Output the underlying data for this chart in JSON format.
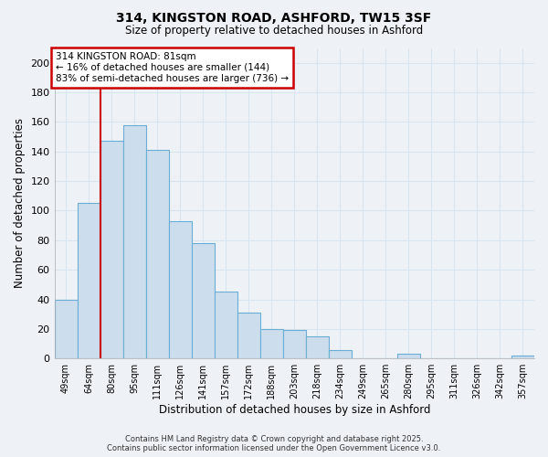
{
  "title": "314, KINGSTON ROAD, ASHFORD, TW15 3SF",
  "subtitle": "Size of property relative to detached houses in Ashford",
  "xlabel": "Distribution of detached houses by size in Ashford",
  "ylabel": "Number of detached properties",
  "bar_labels": [
    "49sqm",
    "64sqm",
    "80sqm",
    "95sqm",
    "111sqm",
    "126sqm",
    "141sqm",
    "157sqm",
    "172sqm",
    "188sqm",
    "203sqm",
    "218sqm",
    "234sqm",
    "249sqm",
    "265sqm",
    "280sqm",
    "295sqm",
    "311sqm",
    "326sqm",
    "342sqm",
    "357sqm"
  ],
  "bar_heights": [
    40,
    105,
    147,
    158,
    141,
    93,
    78,
    45,
    31,
    20,
    19,
    15,
    6,
    0,
    0,
    3,
    0,
    0,
    0,
    0,
    2
  ],
  "bar_color": "#ccdded",
  "bar_edge_color": "#6aaed6",
  "vline_color": "#cc0000",
  "annotation_line1": "314 KINGSTON ROAD: 81sqm",
  "annotation_line2": "← 16% of detached houses are smaller (144)",
  "annotation_line3": "83% of semi-detached houses are larger (736) →",
  "annotation_box_color": "#cc0000",
  "ylim": [
    0,
    210
  ],
  "yticks": [
    0,
    20,
    40,
    60,
    80,
    100,
    120,
    140,
    160,
    180,
    200
  ],
  "footer_line1": "Contains HM Land Registry data © Crown copyright and database right 2025.",
  "footer_line2": "Contains public sector information licensed under the Open Government Licence v3.0.",
  "background_color": "#eef2f7",
  "grid_color": "#d8e4f0"
}
